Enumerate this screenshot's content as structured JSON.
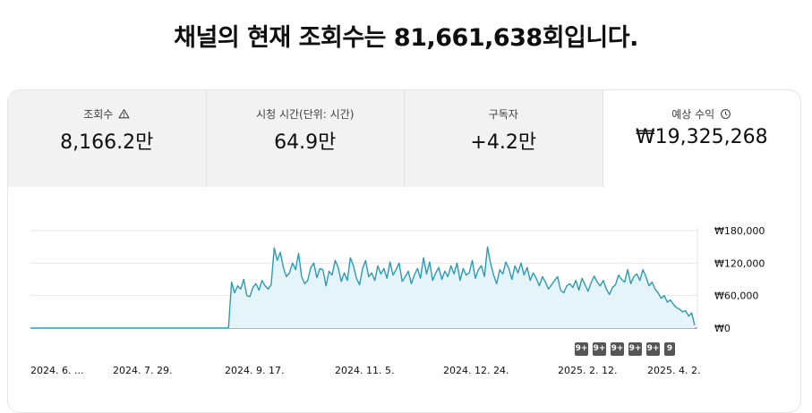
{
  "headline": "채널의 현재 조회수는 81,661,638회입니다.",
  "metrics": [
    {
      "label": "조회수",
      "value": "8,166.2만",
      "icon": "warning-icon"
    },
    {
      "label": "시청 시간(단위: 시간)",
      "value": "64.9만"
    },
    {
      "label": "구독자",
      "value": "+4.2만"
    },
    {
      "label": "예상 수익",
      "value": "₩19,325,268",
      "icon": "clock-icon"
    }
  ],
  "badges": [
    "9+",
    "9+",
    "9+",
    "9+",
    "9+",
    "9"
  ],
  "chart_data": {
    "type": "area",
    "series": [
      {
        "values": [
          0,
          0,
          0,
          0,
          0,
          0,
          0,
          0,
          0,
          0,
          0,
          0,
          0,
          0,
          0,
          0,
          0,
          0,
          0,
          0,
          0,
          0,
          0,
          0,
          0,
          0,
          0,
          0,
          0,
          0,
          0,
          0,
          0,
          0,
          0,
          0,
          0,
          0,
          0,
          0,
          0,
          0,
          0,
          0,
          0,
          0,
          0,
          0,
          0,
          0,
          0,
          0,
          0,
          0,
          0,
          0,
          0,
          0,
          0,
          0,
          0,
          0,
          0,
          0,
          0,
          0,
          85000,
          65000,
          78000,
          72000,
          90000,
          60000,
          58000,
          75000,
          82000,
          70000,
          88000,
          78000,
          72000,
          80000,
          148000,
          125000,
          140000,
          112000,
          95000,
          102000,
          120000,
          108000,
          138000,
          95000,
          82000,
          88000,
          112000,
          120000,
          93000,
          110000,
          108000,
          78000,
          105000,
          98000,
          125000,
          112000,
          86000,
          102000,
          88000,
          130000,
          115000,
          92000,
          80000,
          110000,
          125000,
          95000,
          102000,
          88000,
          115000,
          100000,
          110000,
          92000,
          122000,
          98000,
          108000,
          120000,
          86000,
          95000,
          105000,
          82000,
          98000,
          110000,
          92000,
          130000,
          100000,
          122000,
          88000,
          102000,
          112000,
          90000,
          105000,
          95000,
          115000,
          100000,
          120000,
          88000,
          110000,
          98000,
          102000,
          125000,
          92000,
          108000,
          115000,
          95000,
          150000,
          120000,
          98000,
          82000,
          108000,
          100000,
          122000,
          110000,
          90000,
          115000,
          102000,
          120000,
          98000,
          112000,
          88000,
          102000,
          92000,
          78000,
          95000,
          85000,
          72000,
          80000,
          88000,
          95000,
          70000,
          65000,
          78000,
          82000,
          75000,
          88000,
          70000,
          92000,
          80000,
          68000,
          84000,
          96000,
          85000,
          78000,
          88000,
          72000,
          62000,
          75000,
          80000,
          98000,
          90000,
          85000,
          108000,
          82000,
          95000,
          100000,
          88000,
          108000,
          95000,
          78000,
          85000,
          72000,
          65000,
          55000,
          60000,
          48000,
          52000,
          44000,
          38000,
          35000,
          30000,
          32000,
          22000,
          28000,
          5000
        ]
      }
    ],
    "x_tick_labels": [
      "2024. 6. ...",
      "2024. 7. 29.",
      "2024. 9. 17.",
      "2024. 11. 5.",
      "2024. 12. 24.",
      "2025. 2. 12.",
      "2025. 4. 2."
    ],
    "y_tick_labels": [
      "₩180,000",
      "₩120,000",
      "₩60,000",
      "₩0"
    ],
    "y_ticks": [
      180000,
      120000,
      60000,
      0
    ],
    "ylim": [
      0,
      180000
    ],
    "colors": {
      "line": "#2b9bb5",
      "fill": "#e5f4f8",
      "grid": "#e5e5e5",
      "baseline": "#606060"
    }
  }
}
